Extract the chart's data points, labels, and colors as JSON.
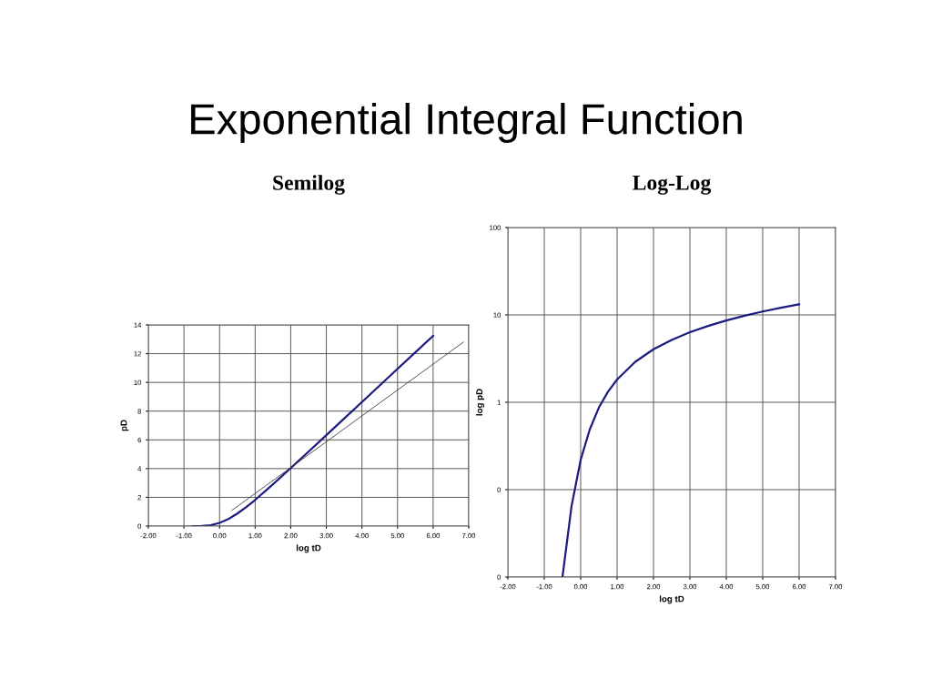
{
  "chart_data": [
    {
      "type": "line",
      "title": "Exponential Integral Function",
      "subtitle": "Semilog",
      "xlabel": "log tD",
      "ylabel": "pD",
      "xlim": [
        -2,
        7
      ],
      "ylim": [
        0,
        14
      ],
      "xticks": [
        {
          "value": -2,
          "label": "-2.00"
        },
        {
          "value": -1,
          "label": "-1.00"
        },
        {
          "value": 0,
          "label": "0.00"
        },
        {
          "value": 1,
          "label": "1.00"
        },
        {
          "value": 2,
          "label": "2.00"
        },
        {
          "value": 3,
          "label": "3.00"
        },
        {
          "value": 4,
          "label": "4.00"
        },
        {
          "value": 5,
          "label": "5.00"
        },
        {
          "value": 6,
          "label": "6.00"
        },
        {
          "value": 7,
          "label": "7.00"
        }
      ],
      "yticks": [
        0,
        2,
        4,
        6,
        8,
        10,
        12,
        14
      ],
      "grid": true,
      "marker": "none",
      "line_style": "solid",
      "series": [
        {
          "color": "#1c1c80",
          "x": [
            -0.75,
            -0.5,
            -0.25,
            0,
            0.25,
            0.5,
            0.75,
            1,
            1.5,
            2,
            2.5,
            3,
            3.5,
            4,
            4.5,
            5,
            5.5,
            6
          ],
          "values": [
            0,
            0.01,
            0.06,
            0.22,
            0.49,
            0.87,
            1.32,
            1.82,
            2.91,
            4.04,
            5.18,
            6.33,
            7.48,
            8.63,
            9.79,
            10.94,
            12.09,
            13.24
          ]
        },
        {
          "color": "#333333",
          "x": [
            0.35,
            6.85
          ],
          "values": [
            1.1,
            12.8
          ]
        }
      ]
    },
    {
      "type": "line",
      "subtitle": "Log-Log",
      "xlabel": "log tD",
      "ylabel": "log pD",
      "log": true,
      "xlim": [
        -2,
        7
      ],
      "ylim": [
        0.01,
        100
      ],
      "xticks": [
        {
          "value": -2,
          "label": "-2.00"
        },
        {
          "value": -1,
          "label": "-1.00"
        },
        {
          "value": 0,
          "label": "0.00"
        },
        {
          "value": 1,
          "label": "1.00"
        },
        {
          "value": 2,
          "label": "2.00"
        },
        {
          "value": 3,
          "label": "3.00"
        },
        {
          "value": 4,
          "label": "4.00"
        },
        {
          "value": 5,
          "label": "5.00"
        },
        {
          "value": 6,
          "label": "6.00"
        },
        {
          "value": 7,
          "label": "7.00"
        }
      ],
      "yticks": [
        {
          "value": 0.01,
          "label": "0"
        },
        {
          "value": 0.1,
          "label": "0"
        },
        1,
        10,
        100
      ],
      "grid": true,
      "marker": "none",
      "line_style": "solid",
      "series": [
        {
          "color": "#1c1c80",
          "x": [
            -0.5,
            -0.25,
            0,
            0.25,
            0.5,
            0.75,
            1,
            1.5,
            2,
            2.5,
            3,
            3.5,
            4,
            4.5,
            5,
            5.5,
            6
          ],
          "values": [
            0.01,
            0.065,
            0.22,
            0.49,
            0.87,
            1.32,
            1.82,
            2.91,
            4.04,
            5.18,
            6.33,
            7.48,
            8.63,
            9.79,
            10.94,
            12.09,
            13.24
          ]
        }
      ]
    }
  ]
}
